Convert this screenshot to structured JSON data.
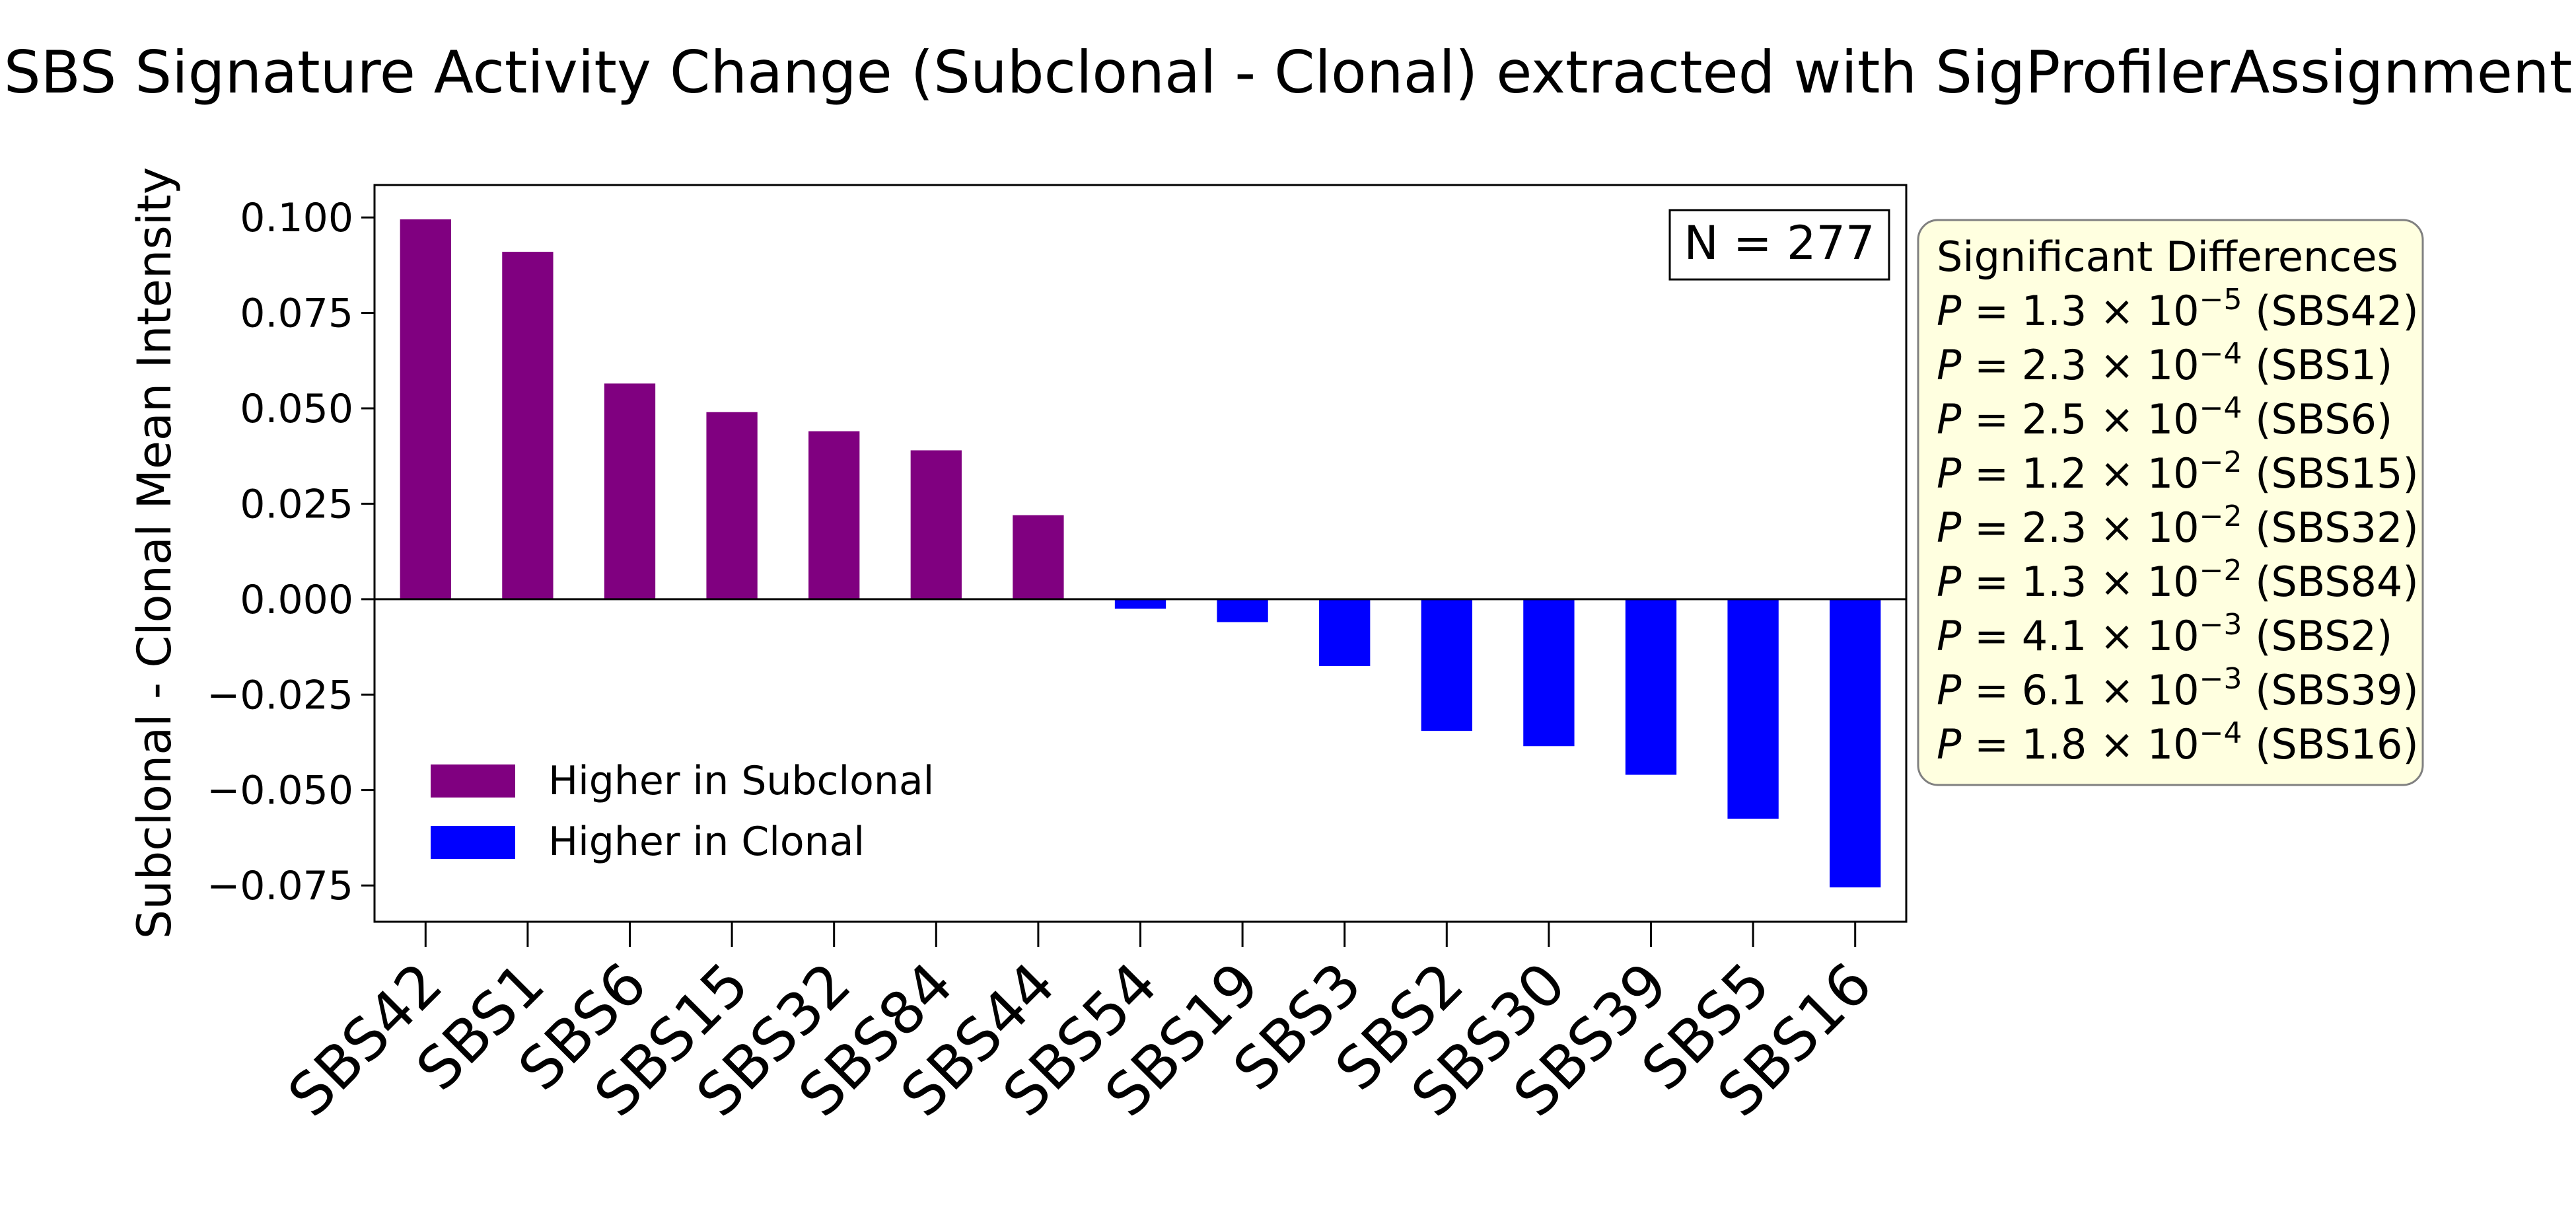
{
  "chart_data": {
    "type": "bar",
    "title": "SBS Signature Activity Change (Subclonal - Clonal) extracted with SigProfilerAssignment",
    "xlabel": "",
    "ylabel": "Subclonal - Clonal Mean Intensity",
    "ylim": [
      -0.0845,
      0.1085
    ],
    "yticks": [
      0.1,
      0.075,
      0.05,
      0.025,
      0.0,
      -0.025,
      -0.05,
      -0.075
    ],
    "ytick_labels": [
      "0.100",
      "0.075",
      "0.050",
      "0.025",
      "0.000",
      "−0.025",
      "−0.050",
      "−0.075"
    ],
    "categories": [
      "SBS42",
      "SBS1",
      "SBS6",
      "SBS15",
      "SBS32",
      "SBS84",
      "SBS44",
      "SBS54",
      "SBS19",
      "SBS3",
      "SBS2",
      "SBS30",
      "SBS39",
      "SBS5",
      "SBS16"
    ],
    "values": [
      0.0995,
      0.091,
      0.0565,
      0.049,
      0.044,
      0.039,
      0.022,
      -0.0025,
      -0.006,
      -0.0175,
      -0.0345,
      -0.0385,
      -0.046,
      -0.0575,
      -0.0755
    ],
    "colors": {
      "positive": "#800080",
      "negative": "#0000ff"
    },
    "legend": {
      "position": "lower-left",
      "entries": [
        {
          "label": "Higher in Subclonal",
          "color": "#800080"
        },
        {
          "label": "Higher in Clonal",
          "color": "#0000ff"
        }
      ]
    },
    "annotation": "N = 277",
    "significance_box": {
      "title": "Significant Differences",
      "items": [
        {
          "mantissa": "1.3",
          "exponent": "−5",
          "label": "(SBS42)"
        },
        {
          "mantissa": "2.3",
          "exponent": "−4",
          "label": "(SBS1)"
        },
        {
          "mantissa": "2.5",
          "exponent": "−4",
          "label": "(SBS6)"
        },
        {
          "mantissa": "1.2",
          "exponent": "−2",
          "label": "(SBS15)"
        },
        {
          "mantissa": "2.3",
          "exponent": "−2",
          "label": "(SBS32)"
        },
        {
          "mantissa": "1.3",
          "exponent": "−2",
          "label": "(SBS84)"
        },
        {
          "mantissa": "4.1",
          "exponent": "−3",
          "label": "(SBS2)"
        },
        {
          "mantissa": "6.1",
          "exponent": "−3",
          "label": "(SBS39)"
        },
        {
          "mantissa": "1.8",
          "exponent": "−4",
          "label": "(SBS16)"
        }
      ]
    },
    "grid": false
  }
}
